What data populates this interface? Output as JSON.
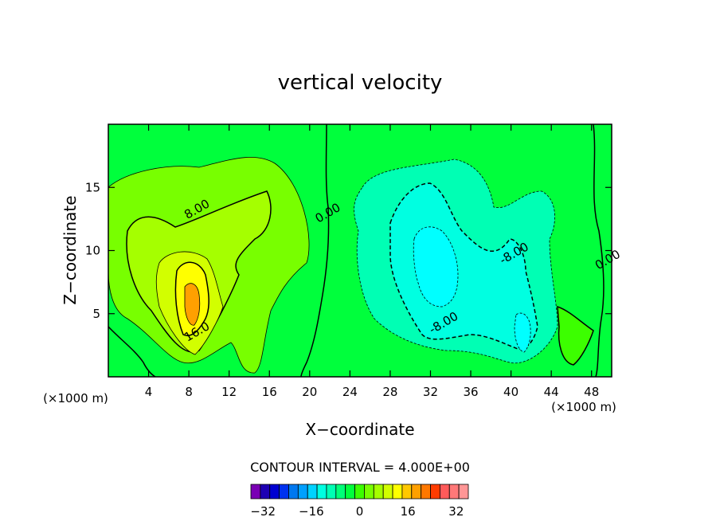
{
  "chart_data": {
    "type": "heatmap",
    "title": "vertical velocity",
    "xlabel": "X−coordinate",
    "ylabel": "Z−coordinate",
    "x_unit_left": "(×1000 m)",
    "x_unit_right": "(×1000 m)",
    "xlim": [
      0,
      50
    ],
    "ylim": [
      0,
      20
    ],
    "x_ticks": [
      "4",
      "8",
      "12",
      "16",
      "20",
      "24",
      "28",
      "32",
      "36",
      "40",
      "44",
      "48"
    ],
    "y_ticks": [
      "5",
      "10",
      "15"
    ],
    "contour_interval_text": "CONTOUR INTERVAL = 4.000E+00",
    "contour_interval": 4,
    "contour_labels": [
      {
        "text": "8.00",
        "x": 9,
        "y": 13
      },
      {
        "text": "16.0",
        "x": 9,
        "y": 3.3
      },
      {
        "text": "0.00",
        "x": 22,
        "y": 12.7
      },
      {
        "text": "-8.00",
        "x": 40.5,
        "y": 9.5
      },
      {
        "text": "-8.00",
        "x": 33.5,
        "y": 4
      },
      {
        "text": "0.00",
        "x": 49.8,
        "y": 9
      }
    ],
    "colorbar": {
      "min": -36,
      "max": 36,
      "tick_labels": [
        "−32",
        "−16",
        "0",
        "16",
        "32"
      ],
      "tick_values": [
        -32,
        -16,
        0,
        16,
        32
      ],
      "colors": [
        "#7a00b4",
        "#1e00b4",
        "#0000d2",
        "#0032f0",
        "#0078f0",
        "#00a0ff",
        "#00d2ff",
        "#00ffe1",
        "#00ffb4",
        "#00ff78",
        "#00ff3c",
        "#3cff00",
        "#78ff00",
        "#a5ff00",
        "#d2ff00",
        "#ffff00",
        "#ffc800",
        "#ffa000",
        "#ff7800",
        "#ff3c00",
        "#ff5a5a",
        "#ff7878",
        "#ff9696"
      ]
    },
    "fields": {
      "background": 1,
      "features": [
        {
          "sign": "positive",
          "peak": 24,
          "x_center": 9,
          "z_center": 6,
          "description": "updraft core"
        },
        {
          "sign": "negative",
          "peak": -16,
          "x_center": 32,
          "z_center": 9,
          "description": "downdraft core"
        },
        {
          "sign": "negative",
          "peak": -12,
          "x_center": 41,
          "z_center": 3,
          "description": "downdraft lobe"
        },
        {
          "sign": "positive",
          "peak": 4,
          "x_center": 45,
          "z_center": 3,
          "description": "small updraft"
        }
      ]
    }
  }
}
